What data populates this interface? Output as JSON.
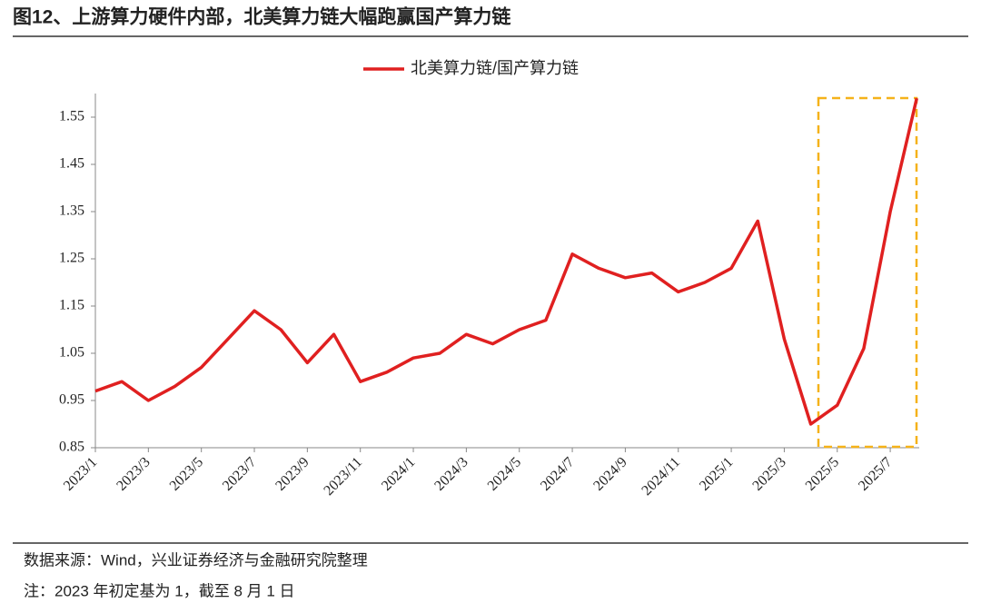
{
  "chart_data": {
    "type": "line",
    "title": "图12、上游算力硬件内部，北美算力链大幅跑赢国产算力链",
    "categories": [
      "2023/1",
      null,
      "2023/3",
      null,
      "2023/5",
      null,
      "2023/7",
      null,
      "2023/9",
      null,
      "2023/11",
      null,
      "2024/1",
      null,
      "2024/3",
      null,
      "2024/5",
      null,
      "2024/7",
      null,
      "2024/9",
      null,
      "2024/11",
      null,
      "2025/1",
      null,
      "2025/3",
      null,
      "2025/5",
      null,
      "2025/7",
      null
    ],
    "series": [
      {
        "name": "北美算力链/国产算力链",
        "color": "#e02020",
        "values": [
          0.97,
          0.99,
          0.95,
          0.98,
          1.02,
          1.08,
          1.14,
          1.1,
          1.03,
          1.09,
          0.99,
          1.01,
          1.04,
          1.05,
          1.09,
          1.07,
          1.1,
          1.12,
          1.26,
          1.23,
          1.21,
          1.22,
          1.18,
          1.2,
          1.23,
          1.33,
          1.08,
          0.9,
          0.94,
          1.06,
          1.35,
          1.59
        ]
      }
    ],
    "ylim": [
      0.85,
      1.6
    ],
    "yticks": [
      0.85,
      0.95,
      1.05,
      1.15,
      1.25,
      1.35,
      1.45,
      1.55
    ],
    "legend": "top",
    "source": "数据来源：Wind，兴业证券经济与金融研究院整理",
    "note": "注：2023 年初定基为 1，截至 8 月 1 日"
  }
}
